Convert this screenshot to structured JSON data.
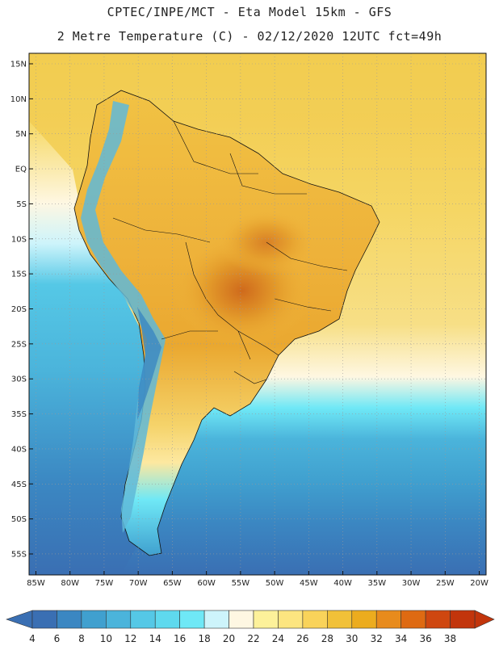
{
  "header": {
    "line1": "CPTEC/INPE/MCT -  Eta Model 15km - GFS",
    "line2": "2 Metre Temperature (C) - 02/12/2020 12UTC fct=49h"
  },
  "axes": {
    "lat_labels": [
      "15N",
      "10N",
      "5N",
      "EQ",
      "5S",
      "10S",
      "15S",
      "20S",
      "25S",
      "30S",
      "35S",
      "40S",
      "45S",
      "50S",
      "55S"
    ],
    "lat_values": [
      15,
      10,
      5,
      0,
      -5,
      -10,
      -15,
      -20,
      -25,
      -30,
      -35,
      -40,
      -45,
      -50,
      -55
    ],
    "lon_labels": [
      "85W",
      "80W",
      "75W",
      "70W",
      "65W",
      "60W",
      "55W",
      "50W",
      "45W",
      "40W",
      "35W",
      "30W",
      "25W",
      "20W"
    ],
    "lon_values": [
      -85,
      -80,
      -75,
      -70,
      -65,
      -60,
      -55,
      -50,
      -45,
      -40,
      -35,
      -30,
      -25,
      -20
    ],
    "lon_range": [
      -86,
      -19
    ],
    "lat_range": [
      -58,
      16.5
    ]
  },
  "colorbar": {
    "labels": [
      "4",
      "6",
      "8",
      "10",
      "12",
      "14",
      "16",
      "18",
      "20",
      "22",
      "24",
      "26",
      "28",
      "30",
      "32",
      "34",
      "36",
      "38"
    ],
    "colors": [
      "#3a6fb3",
      "#3b87c2",
      "#40a0cf",
      "#4bb4db",
      "#55c8e6",
      "#5fd9ee",
      "#6fe8f6",
      "#cdf4fb",
      "#fef7e2",
      "#fdf19a",
      "#fde580",
      "#f9d35a",
      "#f1c138",
      "#ecac1e",
      "#e88b1c",
      "#de6a12",
      "#cf4710",
      "#c2350c"
    ],
    "low_color": "#3a6fb3",
    "high_color": "#c2350c"
  },
  "colors": {
    "ocean_north": "#f6d860",
    "ocean_south_deep": "#3a6fb3",
    "land_hot": "#d98a2a",
    "land_warm": "#efb43a",
    "andes": "#5fb8d8"
  }
}
